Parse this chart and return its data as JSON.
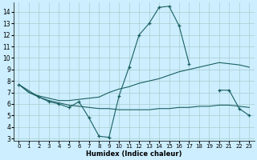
{
  "xlabel": "Humidex (Indice chaleur)",
  "xlim": [
    -0.5,
    23.5
  ],
  "ylim": [
    2.8,
    14.8
  ],
  "bg_color": "#cceeff",
  "grid_color": "#aacccc",
  "line_color": "#1a6060",
  "line1_x": [
    0,
    1,
    2,
    3,
    4,
    5,
    6,
    7,
    8,
    9,
    10,
    11,
    12,
    13,
    14,
    15,
    16,
    17,
    18,
    19,
    20,
    21,
    22,
    23
  ],
  "line1_y": [
    7.7,
    7.0,
    6.7,
    6.5,
    6.3,
    6.3,
    6.4,
    6.5,
    6.6,
    7.0,
    7.3,
    7.5,
    7.8,
    8.0,
    8.2,
    8.5,
    8.8,
    9.0,
    9.2,
    9.4,
    9.6,
    9.5,
    9.4,
    9.2
  ],
  "line2_x": [
    0,
    1,
    2,
    3,
    4,
    5,
    6,
    7,
    8,
    9,
    10,
    11,
    12,
    13,
    14,
    15,
    16,
    17,
    18,
    19,
    20,
    21,
    22,
    23
  ],
  "line2_y": [
    7.7,
    7.0,
    6.6,
    6.3,
    6.1,
    5.9,
    5.8,
    5.7,
    5.6,
    5.6,
    5.5,
    5.5,
    5.5,
    5.5,
    5.6,
    5.6,
    5.7,
    5.7,
    5.8,
    5.8,
    5.9,
    5.9,
    5.8,
    5.7
  ],
  "line3_x": [
    0,
    2,
    3,
    4,
    5,
    6,
    7,
    8,
    9,
    10,
    11,
    12,
    13,
    14,
    15,
    16,
    17,
    20,
    21,
    22,
    23
  ],
  "line3_y": [
    7.7,
    6.6,
    6.2,
    6.0,
    5.7,
    6.2,
    4.8,
    3.2,
    3.1,
    6.7,
    9.2,
    12.0,
    13.0,
    14.4,
    14.5,
    12.8,
    9.5,
    7.2,
    7.2,
    5.6,
    5.0
  ],
  "xticks": [
    0,
    1,
    2,
    3,
    4,
    5,
    6,
    7,
    8,
    9,
    10,
    11,
    12,
    13,
    14,
    15,
    16,
    17,
    18,
    19,
    20,
    21,
    22,
    23
  ],
  "yticks": [
    3,
    4,
    5,
    6,
    7,
    8,
    9,
    10,
    11,
    12,
    13,
    14
  ]
}
